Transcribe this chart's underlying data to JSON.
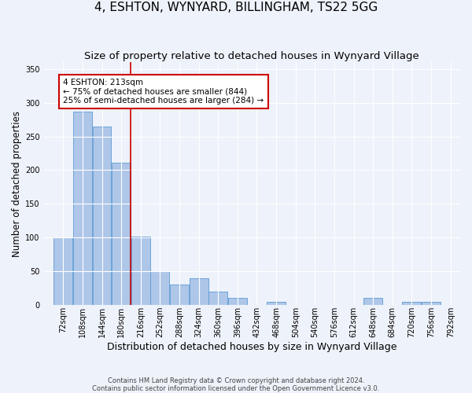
{
  "title1": "4, ESHTON, WYNYARD, BILLINGHAM, TS22 5GG",
  "title2": "Size of property relative to detached houses in Wynyard Village",
  "xlabel": "Distribution of detached houses by size in Wynyard Village",
  "ylabel": "Number of detached properties",
  "footnote1": "Contains HM Land Registry data © Crown copyright and database right 2024.",
  "footnote2": "Contains public sector information licensed under the Open Government Licence v3.0.",
  "bin_starts": [
    72,
    108,
    144,
    180,
    216,
    252,
    288,
    324,
    360,
    396,
    432,
    468,
    504,
    540,
    576,
    612,
    648,
    684,
    720,
    756,
    792
  ],
  "bin_width": 36,
  "bar_heights": [
    100,
    287,
    265,
    211,
    101,
    50,
    30,
    40,
    20,
    10,
    0,
    5,
    0,
    0,
    0,
    0,
    10,
    0,
    5,
    5,
    0
  ],
  "bar_color": "#aec6e8",
  "bar_edge_color": "#5b9bd5",
  "vline_x": 216,
  "vline_color": "#cc0000",
  "annotation_line1": "4 ESHTON: 213sqm",
  "annotation_line2": "← 75% of detached houses are smaller (844)",
  "annotation_line3": "25% of semi-detached houses are larger (284) →",
  "annotation_box_color": "#ffffff",
  "annotation_box_edge": "#cc0000",
  "ylim": [
    0,
    360
  ],
  "yticks": [
    0,
    50,
    100,
    150,
    200,
    250,
    300,
    350
  ],
  "xlim_left": 54,
  "xlim_right": 828,
  "background_color": "#eef2fa",
  "grid_color": "#ffffff",
  "title1_fontsize": 11,
  "title2_fontsize": 9.5,
  "xlabel_fontsize": 9,
  "ylabel_fontsize": 8.5,
  "tick_fontsize": 7,
  "annot_fontsize": 7.5
}
